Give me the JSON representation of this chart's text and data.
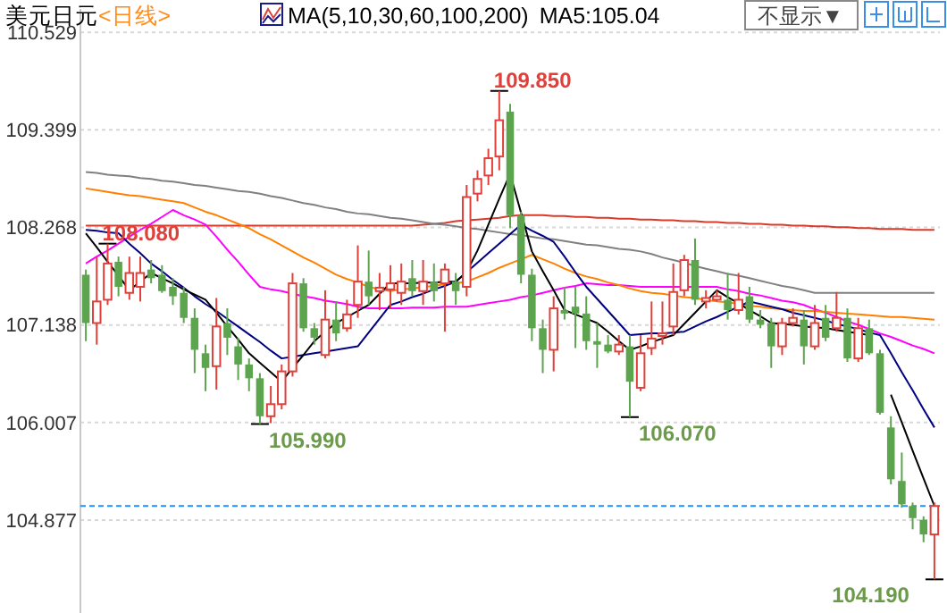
{
  "chart_data": {
    "type": "candlestick",
    "title": "美元日元",
    "subtitle": "<日线>",
    "legend_title": "MA(5,10,30,60,100,200)",
    "categories": [
      null,
      null,
      null,
      null,
      null,
      null,
      null,
      null,
      null,
      null,
      null,
      null,
      null,
      null,
      null,
      null,
      null,
      null,
      null,
      null,
      null,
      null,
      null,
      null,
      null,
      null,
      null,
      null,
      null,
      null,
      null,
      null,
      null,
      null,
      null,
      null,
      null,
      null,
      null,
      null,
      null,
      null,
      null,
      null,
      null,
      null,
      null,
      null,
      null,
      null,
      null,
      null,
      null,
      null,
      null,
      null,
      null,
      null,
      null,
      null,
      null,
      null,
      null,
      null,
      null,
      null,
      null,
      null,
      null,
      null,
      null,
      null,
      null,
      null,
      null,
      null,
      null,
      null,
      null
    ],
    "ohlc": [
      [
        107.72,
        107.78,
        106.95,
        107.16
      ],
      [
        107.16,
        107.93,
        106.91,
        107.41
      ],
      [
        107.43,
        108.08,
        107.37,
        107.85
      ],
      [
        107.87,
        107.93,
        107.47,
        107.58
      ],
      [
        107.51,
        107.93,
        107.43,
        107.74
      ],
      [
        107.58,
        107.93,
        107.41,
        107.74
      ],
      [
        107.78,
        107.89,
        107.62,
        107.68
      ],
      [
        107.72,
        107.83,
        107.51,
        107.53
      ],
      [
        107.58,
        107.68,
        107.37,
        107.47
      ],
      [
        107.51,
        107.58,
        107.16,
        107.22
      ],
      [
        107.22,
        107.33,
        106.58,
        106.85
      ],
      [
        106.81,
        106.91,
        106.37,
        106.64
      ],
      [
        106.66,
        107.45,
        106.39,
        107.12
      ],
      [
        107.16,
        107.33,
        106.79,
        106.99
      ],
      [
        106.89,
        106.99,
        106.5,
        106.68
      ],
      [
        106.68,
        106.75,
        106.37,
        106.52
      ],
      [
        106.52,
        106.58,
        105.99,
        106.08
      ],
      [
        106.08,
        106.43,
        106.0,
        106.22
      ],
      [
        106.22,
        106.68,
        106.16,
        106.6
      ],
      [
        106.6,
        107.74,
        106.54,
        107.62
      ],
      [
        107.62,
        107.68,
        107.06,
        107.1
      ],
      [
        107.1,
        107.16,
        106.91,
        106.99
      ],
      [
        106.79,
        107.54,
        106.75,
        107.2
      ],
      [
        107.2,
        107.41,
        106.95,
        107.04
      ],
      [
        107.1,
        107.43,
        107.06,
        107.26
      ],
      [
        107.37,
        108.06,
        107.22,
        107.64
      ],
      [
        107.64,
        108.0,
        107.37,
        107.47
      ],
      [
        107.53,
        107.74,
        107.31,
        107.57
      ],
      [
        107.55,
        107.83,
        107.33,
        107.62
      ],
      [
        107.51,
        107.85,
        107.37,
        107.64
      ],
      [
        107.68,
        107.89,
        107.47,
        107.53
      ],
      [
        107.53,
        107.89,
        107.37,
        107.64
      ],
      [
        107.64,
        107.85,
        107.41,
        107.53
      ],
      [
        107.62,
        107.85,
        107.06,
        107.78
      ],
      [
        107.64,
        107.74,
        107.37,
        107.53
      ],
      [
        107.58,
        108.76,
        107.47,
        108.62
      ],
      [
        108.66,
        108.93,
        108.57,
        108.83
      ],
      [
        108.87,
        109.18,
        108.76,
        109.07
      ],
      [
        109.09,
        109.85,
        108.93,
        109.51
      ],
      [
        109.61,
        109.7,
        108.26,
        108.41
      ],
      [
        108.41,
        108.45,
        107.62,
        107.72
      ],
      [
        107.72,
        107.79,
        106.95,
        107.1
      ],
      [
        107.1,
        107.2,
        106.58,
        106.85
      ],
      [
        106.85,
        107.47,
        106.6,
        107.33
      ],
      [
        107.31,
        107.58,
        107.2,
        107.27
      ],
      [
        107.35,
        107.58,
        106.87,
        107.27
      ],
      [
        107.27,
        107.47,
        106.85,
        106.95
      ],
      [
        106.95,
        107.16,
        106.64,
        106.91
      ],
      [
        106.91,
        107.02,
        106.81,
        106.83
      ],
      [
        106.83,
        107.02,
        106.79,
        106.91
      ],
      [
        106.89,
        107.02,
        106.07,
        106.48
      ],
      [
        106.41,
        107.02,
        106.37,
        106.81
      ],
      [
        106.87,
        107.41,
        106.79,
        106.98
      ],
      [
        107.01,
        107.41,
        106.91,
        107.04
      ],
      [
        107.12,
        107.85,
        107.02,
        107.52
      ],
      [
        107.54,
        107.95,
        107.47,
        107.89
      ],
      [
        107.89,
        108.14,
        107.37,
        107.43
      ],
      [
        107.41,
        107.54,
        107.33,
        107.45
      ],
      [
        107.43,
        107.54,
        107.41,
        107.47
      ],
      [
        107.43,
        107.74,
        107.2,
        107.31
      ],
      [
        107.31,
        107.74,
        107.26,
        107.43
      ],
      [
        107.47,
        107.58,
        107.16,
        107.2
      ],
      [
        107.2,
        107.31,
        107.1,
        107.14
      ],
      [
        107.16,
        107.22,
        106.64,
        106.89
      ],
      [
        106.89,
        107.22,
        106.79,
        107.16
      ],
      [
        107.16,
        107.33,
        107.12,
        107.22
      ],
      [
        107.2,
        107.31,
        106.68,
        106.89
      ],
      [
        106.89,
        107.37,
        106.85,
        107.16
      ],
      [
        107.22,
        107.37,
        106.95,
        106.99
      ],
      [
        107.1,
        107.52,
        107.06,
        107.22
      ],
      [
        107.22,
        107.33,
        106.71,
        106.75
      ],
      [
        106.75,
        107.22,
        106.71,
        107.1
      ],
      [
        107.1,
        107.2,
        106.79,
        106.81
      ],
      [
        106.81,
        106.85,
        106.1,
        106.12
      ],
      [
        105.95,
        106.08,
        105.29,
        105.35
      ],
      [
        105.33,
        105.66,
        105.02,
        105.06
      ],
      [
        105.04,
        105.08,
        104.77,
        104.9
      ],
      [
        104.88,
        104.92,
        104.62,
        104.71
      ],
      [
        104.71,
        105.08,
        104.19,
        105.04
      ]
    ],
    "series": [
      {
        "type": "line",
        "color": "#d93a2b",
        "values": [
          108.29,
          108.29,
          108.29,
          108.29,
          108.29,
          108.29,
          108.29,
          108.29,
          108.29,
          108.29,
          108.29,
          108.29,
          108.29,
          108.29,
          108.29,
          108.29,
          108.29,
          108.29,
          108.29,
          108.29,
          108.29,
          108.29,
          108.29,
          108.29,
          108.29,
          108.29,
          108.29,
          108.29,
          108.29,
          108.29,
          108.29,
          108.3,
          108.31,
          108.32,
          108.34,
          108.35,
          108.36,
          108.37,
          108.38,
          108.4,
          108.41,
          108.41,
          108.41,
          108.4,
          108.4,
          108.39,
          108.39,
          108.38,
          108.38,
          108.37,
          108.37,
          108.36,
          108.36,
          108.35,
          108.35,
          108.34,
          108.34,
          108.33,
          108.33,
          108.32,
          108.32,
          108.31,
          108.31,
          108.3,
          108.3,
          108.29,
          108.29,
          108.28,
          108.28,
          108.27,
          108.27,
          108.26,
          108.26,
          108.25,
          108.25,
          108.25,
          108.24,
          108.24,
          108.24
        ]
      },
      {
        "type": "line",
        "color": "#808080",
        "values": [
          108.91,
          108.9,
          108.88,
          108.87,
          108.86,
          108.84,
          108.83,
          108.81,
          108.8,
          108.78,
          108.76,
          108.75,
          108.73,
          108.71,
          108.69,
          108.68,
          108.66,
          108.63,
          108.61,
          108.58,
          108.55,
          108.53,
          108.5,
          108.48,
          108.45,
          108.43,
          108.42,
          108.4,
          108.38,
          108.37,
          108.35,
          108.33,
          108.31,
          108.3,
          108.28,
          108.26,
          108.25,
          108.23,
          108.21,
          108.19,
          108.18,
          108.16,
          108.14,
          108.13,
          108.11,
          108.09,
          108.07,
          108.06,
          108.04,
          108.02,
          108.01,
          107.99,
          107.96,
          107.92,
          107.89,
          107.86,
          107.82,
          107.79,
          107.76,
          107.73,
          107.71,
          107.68,
          107.65,
          107.62,
          107.59,
          107.57,
          107.54,
          107.51,
          107.51,
          107.51,
          107.51,
          107.51,
          107.51,
          107.51,
          107.51,
          107.51,
          107.51,
          107.51,
          107.51
        ]
      },
      {
        "type": "line",
        "color": "#ff00ff",
        "values": [
          107.85,
          107.93,
          108.0,
          108.08,
          108.16,
          108.24,
          108.31,
          108.39,
          108.47,
          108.41,
          108.36,
          108.3,
          108.16,
          108.01,
          107.87,
          107.72,
          107.58,
          107.55,
          107.53,
          107.5,
          107.47,
          107.45,
          107.42,
          107.4,
          107.38,
          107.35,
          107.33,
          107.33,
          107.33,
          107.33,
          107.34,
          107.34,
          107.34,
          107.35,
          107.35,
          107.35,
          107.37,
          107.39,
          107.41,
          107.43,
          107.46,
          107.48,
          107.51,
          107.54,
          107.57,
          107.59,
          107.62,
          107.61,
          107.6,
          107.6,
          107.59,
          107.58,
          107.58,
          107.58,
          107.58,
          107.58,
          107.58,
          107.58,
          107.58,
          107.55,
          107.53,
          107.5,
          107.48,
          107.45,
          107.42,
          107.4,
          107.37,
          107.32,
          107.28,
          107.23,
          107.18,
          107.14,
          107.09,
          107.04,
          107.0,
          106.95,
          106.9,
          106.86,
          106.81
        ]
      },
      {
        "type": "line",
        "color": "#ff8000",
        "values": [
          108.72,
          108.7,
          108.68,
          108.66,
          108.64,
          108.63,
          108.61,
          108.59,
          108.57,
          108.55,
          108.5,
          108.45,
          108.41,
          108.36,
          108.31,
          108.26,
          108.19,
          108.13,
          108.06,
          107.99,
          107.92,
          107.86,
          107.79,
          107.72,
          107.67,
          107.63,
          107.58,
          107.55,
          107.53,
          107.55,
          107.56,
          107.58,
          107.59,
          107.61,
          107.62,
          107.64,
          107.69,
          107.74,
          107.8,
          107.85,
          107.9,
          107.95,
          107.9,
          107.85,
          107.79,
          107.74,
          107.7,
          107.67,
          107.63,
          107.6,
          107.56,
          107.53,
          107.51,
          107.5,
          107.48,
          107.46,
          107.45,
          107.43,
          107.41,
          107.4,
          107.38,
          107.36,
          107.35,
          107.33,
          107.32,
          107.31,
          107.3,
          107.3,
          107.29,
          107.28,
          107.27,
          107.26,
          107.25,
          107.24,
          107.23,
          107.23,
          107.22,
          107.21,
          107.2
        ]
      },
      {
        "type": "line",
        "color": "#000080",
        "values": [
          108.24,
          108.23,
          108.21,
          108.2,
          108.08,
          107.97,
          107.85,
          107.76,
          107.66,
          107.57,
          107.47,
          107.38,
          107.3,
          107.21,
          107.12,
          107.03,
          106.94,
          106.84,
          106.75,
          106.77,
          106.79,
          106.81,
          106.83,
          106.85,
          106.87,
          106.89,
          107.05,
          107.21,
          107.37,
          107.41,
          107.46,
          107.5,
          107.55,
          107.59,
          107.64,
          107.75,
          107.86,
          107.97,
          108.08,
          108.19,
          108.3,
          108.23,
          108.17,
          108.1,
          107.93,
          107.75,
          107.58,
          107.44,
          107.3,
          107.16,
          107.02,
          107.03,
          107.04,
          107.04,
          107.05,
          107.06,
          107.12,
          107.18,
          107.23,
          107.29,
          107.35,
          107.41,
          107.38,
          107.35,
          107.32,
          107.28,
          107.25,
          107.22,
          107.19,
          107.15,
          107.12,
          107.09,
          107.05,
          107.02,
          106.81,
          106.59,
          106.38,
          106.16,
          105.95
        ]
      },
      {
        "type": "line",
        "color": "#000000",
        "values": [
          108.2,
          108.04,
          107.87,
          107.71,
          107.54,
          107.64,
          107.74,
          107.68,
          107.62,
          107.55,
          107.49,
          107.43,
          107.28,
          107.12,
          106.97,
          106.81,
          106.7,
          106.59,
          106.48,
          106.64,
          106.79,
          106.95,
          107.06,
          107.16,
          107.23,
          107.3,
          107.37,
          107.5,
          107.62,
          107.62,
          107.62,
          107.63,
          107.63,
          107.64,
          107.64,
          107.75,
          108.0,
          108.3,
          108.6,
          108.89,
          108.44,
          107.99,
          107.76,
          107.54,
          107.31,
          107.26,
          107.21,
          107.16,
          107.06,
          106.95,
          106.85,
          106.89,
          106.94,
          106.98,
          107.02,
          107.15,
          107.28,
          107.41,
          107.54,
          107.46,
          107.39,
          107.31,
          107.24,
          107.16,
          107.15,
          107.14,
          107.12,
          107.11,
          107.1,
          107.08,
          107.06,
          107.04,
          107.02,
          null,
          106.33,
          106.01,
          105.68,
          105.36,
          105.04
        ]
      }
    ],
    "ylim": [
      103.8,
      110.8
    ],
    "yticks": [
      110.529,
      109.399,
      108.268,
      107.138,
      106.007,
      104.877
    ],
    "grid": "y",
    "tick_labels": "y",
    "marker": "none",
    "line_style": "solid",
    "ref_lines": [
      {
        "axis": "y",
        "value": 105.04,
        "color": "#1e90ff",
        "line_style": "dashed"
      }
    ],
    "annotations": [
      "MA5:105.04",
      "不显示▼",
      "109.850",
      "108.080",
      "105.990",
      "106.070",
      "104.190"
    ]
  }
}
